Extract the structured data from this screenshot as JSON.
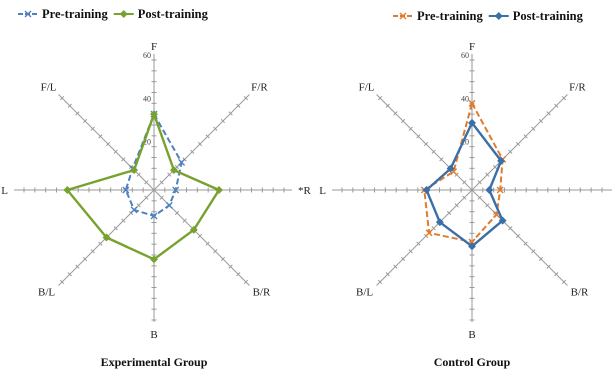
{
  "chart_data": [
    {
      "type": "radar",
      "title": "Experimental Group",
      "axes": [
        "F",
        "F/R",
        "R",
        "B/R",
        "B",
        "B/L",
        "L",
        "F/L"
      ],
      "axis_label_display": [
        "F",
        "F/R",
        "*R",
        "B/R",
        "B",
        "B/L",
        "L",
        "F/L"
      ],
      "rlim": [
        0,
        60
      ],
      "ticks": [
        20,
        40,
        60
      ],
      "tick_labels": [
        "20",
        "40",
        "60"
      ],
      "legend_position": "top",
      "series": [
        {
          "name": "Pre-training",
          "values": [
            35,
            18,
            10,
            10,
            12,
            13,
            13,
            14
          ],
          "color": "#4f81bd",
          "dash": "dashed"
        },
        {
          "name": "Post-training",
          "values": [
            35,
            13,
            30,
            26,
            32,
            31,
            40,
            13
          ],
          "color": "#77a22f",
          "dash": "solid"
        }
      ]
    },
    {
      "type": "radar",
      "title": "Control Group",
      "axes": [
        "F",
        "F/R",
        "R",
        "B/R",
        "B",
        "B/L",
        "L",
        "F/L"
      ],
      "axis_label_display": [
        "F",
        "F/R",
        "R",
        "B/R",
        "B",
        "B/L",
        "L",
        "F/L"
      ],
      "rlim": [
        0,
        60
      ],
      "ticks": [
        20,
        40,
        60
      ],
      "tick_labels": [
        "20",
        "40",
        "60"
      ],
      "legend_position": "top",
      "series": [
        {
          "name": "Pre-training",
          "values": [
            40,
            20,
            13,
            16,
            24,
            28,
            22,
            12
          ],
          "color": "#e07b2c",
          "dash": "dashed"
        },
        {
          "name": "Post-training",
          "values": [
            31,
            19,
            8,
            20,
            26,
            21,
            21,
            14
          ],
          "color": "#3b6fa8",
          "dash": "solid"
        }
      ]
    }
  ]
}
